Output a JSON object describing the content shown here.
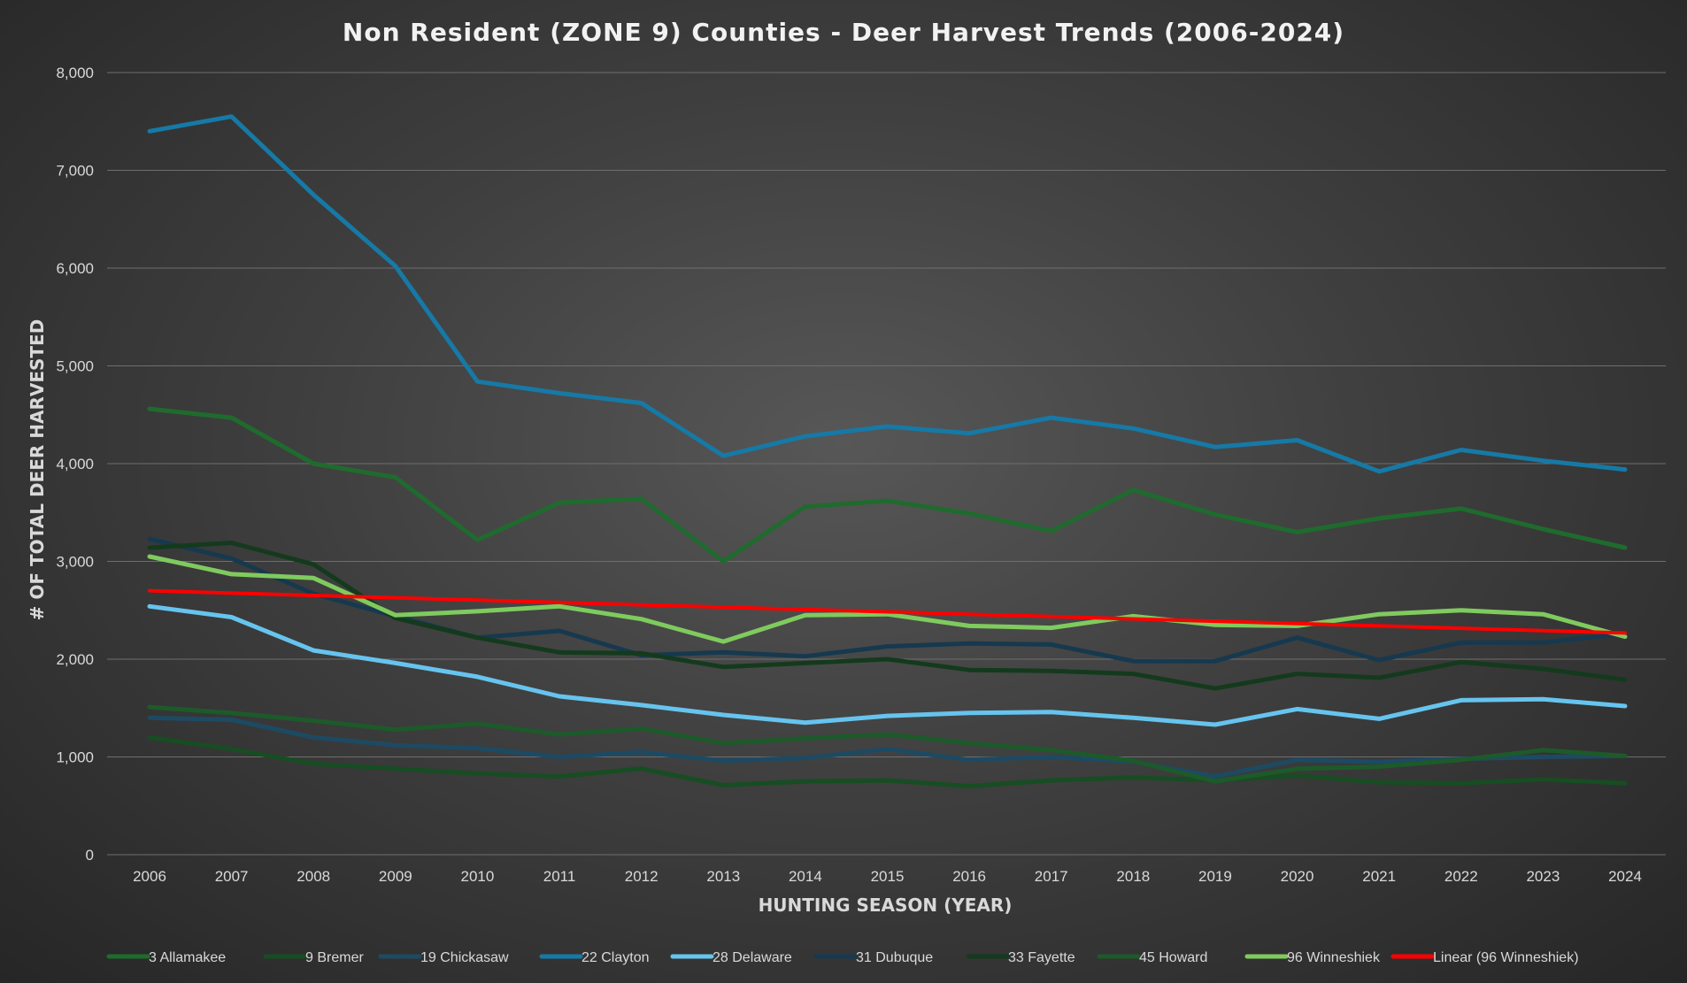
{
  "chart_data": {
    "type": "line",
    "title": "Non Resident (ZONE 9) Counties - Deer Harvest Trends (2006-2024)",
    "xlabel": "HUNTING SEASON (YEAR)",
    "ylabel": "# OF TOTAL DEER HARVESTED",
    "ylim": [
      0,
      8000
    ],
    "yticks": [
      0,
      1000,
      2000,
      3000,
      4000,
      5000,
      6000,
      7000,
      8000
    ],
    "ytick_labels": [
      "0",
      "1,000",
      "2,000",
      "3,000",
      "4,000",
      "5,000",
      "6,000",
      "7,000",
      "8,000"
    ],
    "grid": true,
    "legend_position": "bottom",
    "categories": [
      "2006",
      "2007",
      "2008",
      "2009",
      "2010",
      "2011",
      "2012",
      "2013",
      "2014",
      "2015",
      "2016",
      "2017",
      "2018",
      "2019",
      "2020",
      "2021",
      "2022",
      "2023",
      "2024"
    ],
    "series": [
      {
        "name": "3 Allamakee",
        "color": "#1f6b2e",
        "values": [
          4560,
          4470,
          4000,
          3860,
          3220,
          3600,
          3640,
          3000,
          3560,
          3620,
          3490,
          3310,
          3730,
          3480,
          3300,
          3440,
          3540,
          3330,
          3140
        ]
      },
      {
        "name": "9 Bremer",
        "color": "#174d22",
        "values": [
          1200,
          1080,
          930,
          880,
          830,
          800,
          880,
          710,
          750,
          760,
          700,
          760,
          790,
          760,
          810,
          740,
          730,
          770,
          730
        ]
      },
      {
        "name": "19 Chickasaw",
        "color": "#1d4a63",
        "values": [
          1400,
          1380,
          1200,
          1120,
          1090,
          1000,
          1050,
          960,
          990,
          1080,
          970,
          1000,
          950,
          800,
          970,
          950,
          980,
          1000,
          1010
        ]
      },
      {
        "name": "22 Clayton",
        "color": "#1679a6",
        "values": [
          7400,
          7550,
          6750,
          6020,
          4840,
          4720,
          4620,
          4080,
          4280,
          4380,
          4310,
          4470,
          4360,
          4170,
          4240,
          3920,
          4140,
          4030,
          3940
        ]
      },
      {
        "name": "28 Delaware",
        "color": "#66c4ee",
        "values": [
          2540,
          2430,
          2090,
          1960,
          1820,
          1620,
          1530,
          1430,
          1350,
          1420,
          1450,
          1460,
          1400,
          1330,
          1490,
          1390,
          1580,
          1590,
          1520
        ]
      },
      {
        "name": "31 Dubuque",
        "color": "#16394f",
        "values": [
          3230,
          3030,
          2670,
          2440,
          2220,
          2290,
          2040,
          2070,
          2030,
          2130,
          2160,
          2150,
          1980,
          1980,
          2220,
          1990,
          2170,
          2170,
          2260
        ]
      },
      {
        "name": "33 Fayette",
        "color": "#143a1d",
        "values": [
          3140,
          3190,
          2970,
          2420,
          2220,
          2070,
          2060,
          1920,
          1960,
          2000,
          1890,
          1880,
          1850,
          1700,
          1850,
          1810,
          1970,
          1900,
          1790
        ]
      },
      {
        "name": "45 Howard",
        "color": "#1d5a2a",
        "values": [
          1510,
          1450,
          1370,
          1280,
          1340,
          1230,
          1290,
          1140,
          1190,
          1230,
          1140,
          1070,
          960,
          750,
          880,
          900,
          970,
          1070,
          1010
        ]
      },
      {
        "name": "96 Winneshiek",
        "color": "#7fcb5e",
        "values": [
          3050,
          2870,
          2830,
          2450,
          2490,
          2540,
          2410,
          2180,
          2450,
          2460,
          2340,
          2320,
          2440,
          2350,
          2340,
          2460,
          2500,
          2460,
          2230
        ]
      },
      {
        "name": "Linear (96 Winneshiek)",
        "color": "#ff0000",
        "values": [
          2700,
          2676,
          2652,
          2628,
          2604,
          2580,
          2556,
          2532,
          2508,
          2484,
          2460,
          2436,
          2412,
          2388,
          2364,
          2340,
          2316,
          2292,
          2268
        ]
      }
    ]
  }
}
